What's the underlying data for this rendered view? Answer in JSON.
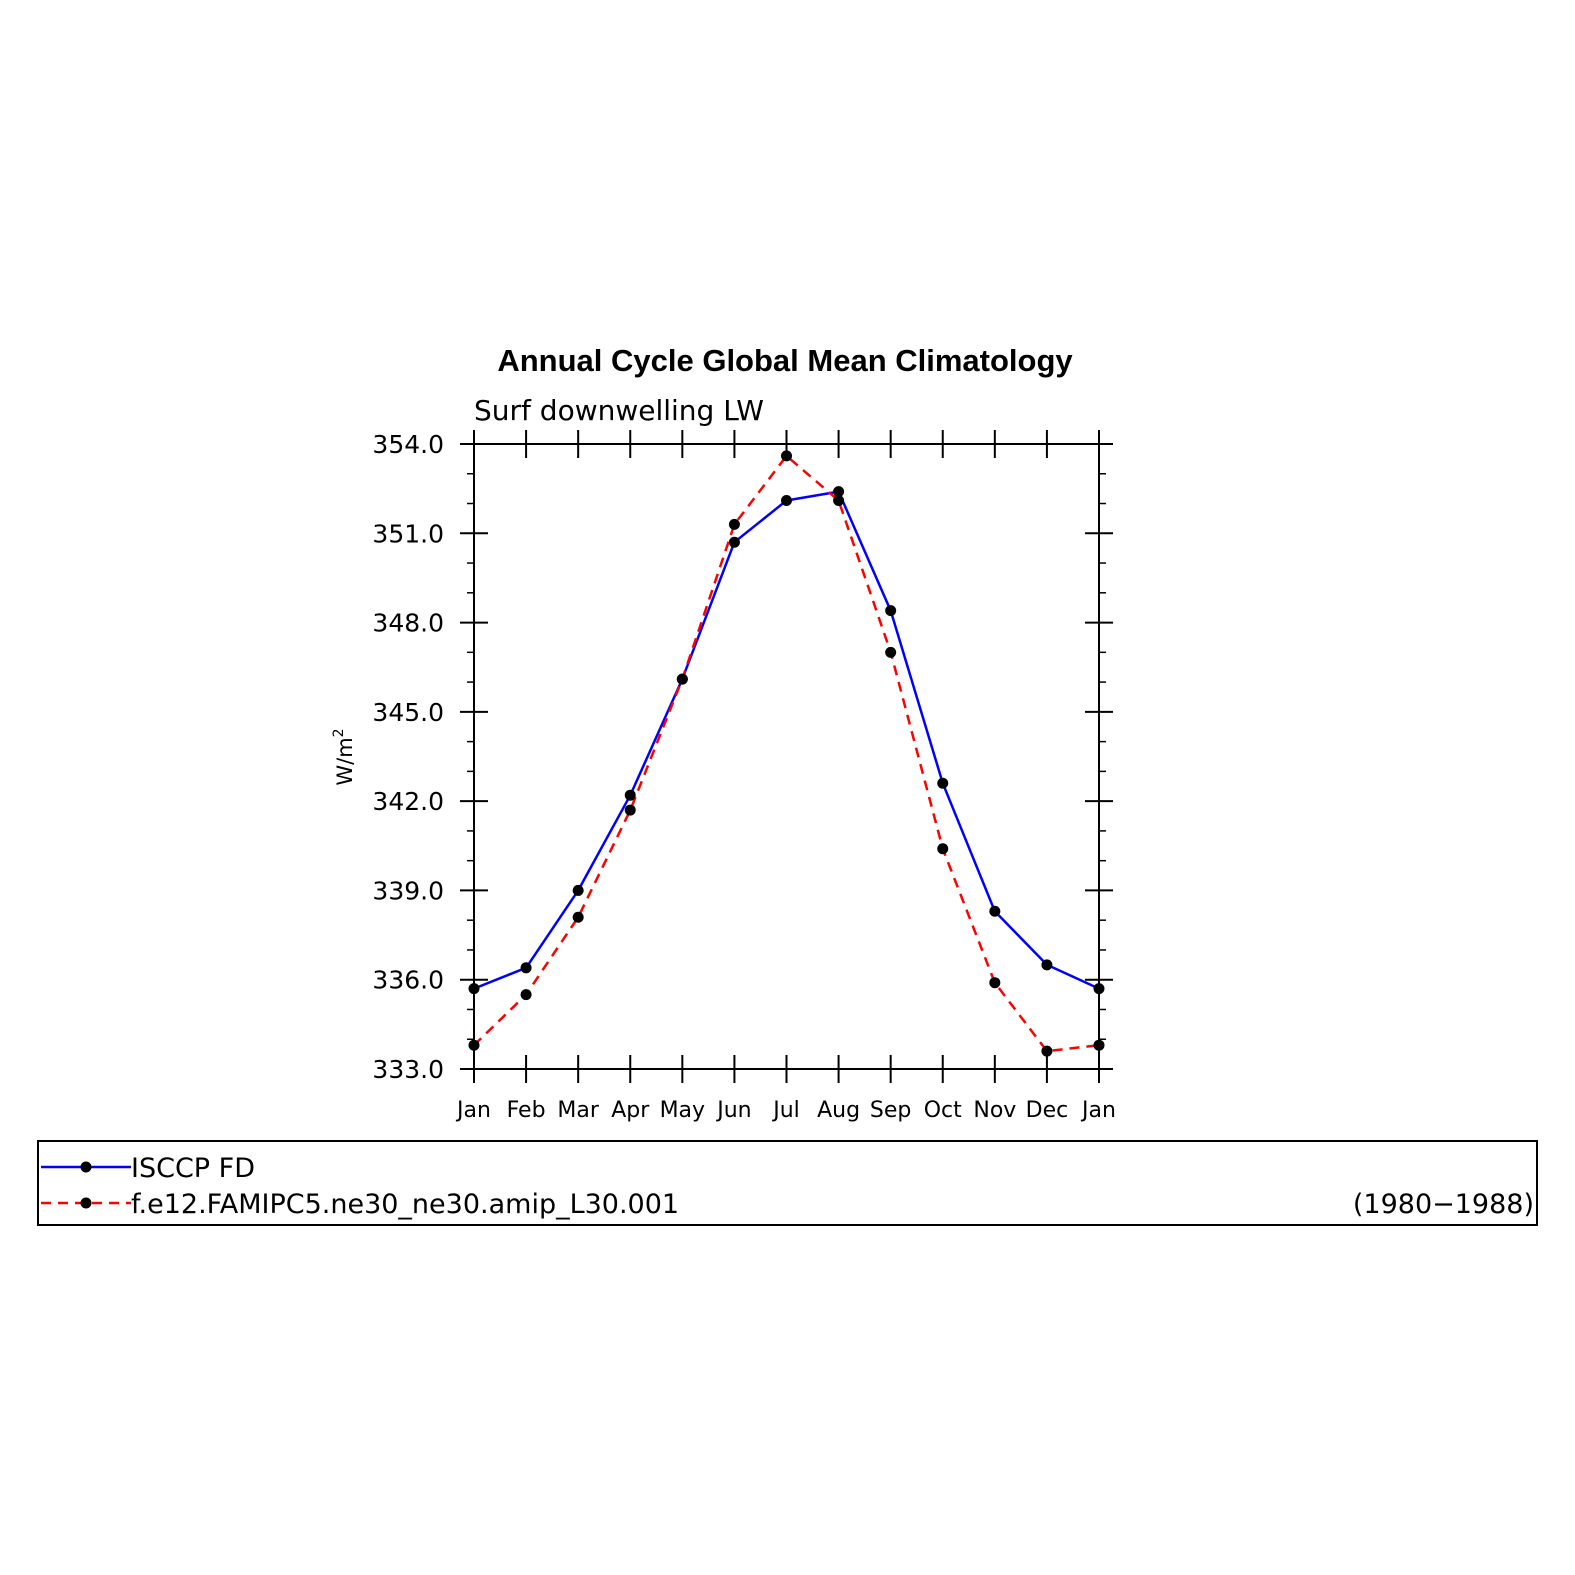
{
  "chart_data": {
    "type": "line",
    "title": "Annual Cycle Global Mean Climatology",
    "subtitle": "Surf downwelling LW",
    "ylabel": "W/m",
    "ylabel_superscript": "2",
    "ylim": [
      333.0,
      354.0
    ],
    "yticks": [
      "333.0",
      "336.0",
      "339.0",
      "342.0",
      "345.0",
      "348.0",
      "351.0",
      "354.0"
    ],
    "categories": [
      "Jan",
      "Feb",
      "Mar",
      "Apr",
      "May",
      "Jun",
      "Jul",
      "Aug",
      "Sep",
      "Oct",
      "Nov",
      "Dec",
      "Jan"
    ],
    "series": [
      {
        "name": "ISCCP FD",
        "color": "#0000ff",
        "style": "solid",
        "values": [
          335.7,
          336.4,
          339.0,
          342.2,
          346.1,
          350.7,
          352.1,
          352.4,
          348.4,
          342.6,
          338.3,
          336.5,
          335.7
        ]
      },
      {
        "name": "f.e12.FAMIPC5.ne30_ne30.amip_L30.001",
        "color": "#ff0000",
        "style": "dashed",
        "values": [
          333.8,
          335.5,
          338.1,
          341.7,
          346.1,
          351.3,
          353.6,
          352.1,
          347.0,
          340.4,
          335.9,
          333.6,
          333.8
        ]
      }
    ],
    "marker_color": "#000000",
    "legend_note": "(1980−1988)",
    "legend_position": "bottom"
  }
}
